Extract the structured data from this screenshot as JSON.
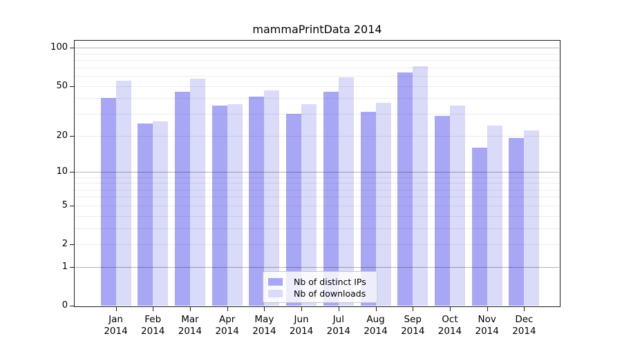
{
  "chart_data": {
    "type": "bar",
    "title": "mammaPrintData 2014",
    "x_categories": [
      "Jan",
      "Feb",
      "Mar",
      "Apr",
      "May",
      "Jun",
      "Jul",
      "Aug",
      "Sep",
      "Oct",
      "Nov",
      "Dec"
    ],
    "x_year_line": "2014",
    "series": [
      {
        "name": "Nb of distinct IPs",
        "color": "#a7a7f5",
        "values": [
          40,
          25,
          45,
          35,
          41,
          30,
          45,
          31,
          64,
          29,
          16,
          19
        ]
      },
      {
        "name": "Nb of downloads",
        "color": "#dadaf9",
        "values": [
          55,
          26,
          57,
          36,
          46,
          36,
          59,
          37,
          72,
          35,
          24,
          22
        ]
      }
    ],
    "yscale": "log1p",
    "y_ticks": [
      0,
      1,
      2,
      5,
      10,
      20,
      50,
      100
    ],
    "ylim": [
      0,
      115
    ],
    "grid": {
      "major_lines": [
        1,
        10,
        100
      ],
      "minor_lines": [
        2,
        3,
        4,
        5,
        6,
        7,
        8,
        9,
        20,
        30,
        40,
        50,
        60,
        70,
        80,
        90
      ],
      "major_color": "rgba(0,0,0,0.30)",
      "minor_color": "rgba(0,0,0,0.075)"
    },
    "legend": {
      "position": "bottom-center"
    },
    "colors": {
      "axis": "#1a1a1a",
      "background": "#ffffff"
    }
  }
}
